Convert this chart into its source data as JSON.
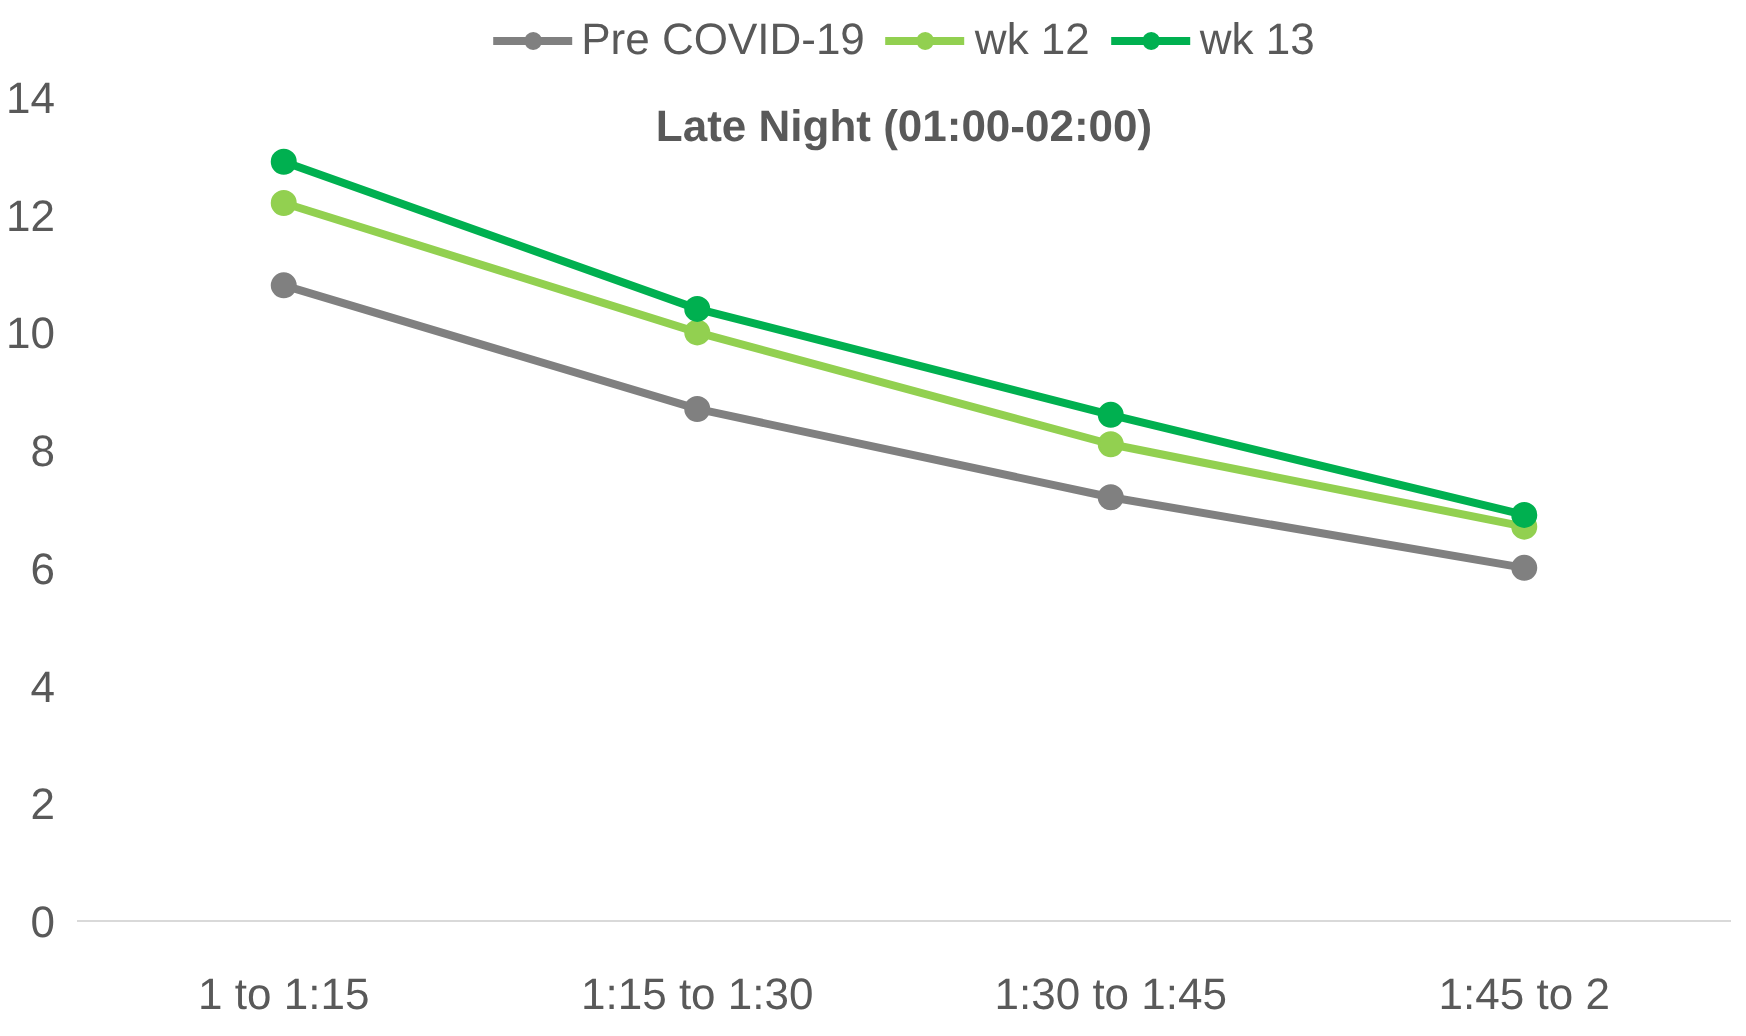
{
  "chart_data": {
    "type": "line",
    "title": "Late Night (01:00-02:00)",
    "categories": [
      "1 to 1:15",
      "1:15 to 1:30",
      "1:30 to 1:45",
      "1:45 to 2"
    ],
    "series": [
      {
        "name": "Pre COVID-19",
        "color": "#808080",
        "values": [
          10.8,
          8.7,
          7.2,
          6.0
        ]
      },
      {
        "name": "wk 12",
        "color": "#92d050",
        "values": [
          12.2,
          10.0,
          8.1,
          6.7
        ]
      },
      {
        "name": "wk 13",
        "color": "#00b050",
        "values": [
          12.9,
          10.4,
          8.6,
          6.9
        ]
      }
    ],
    "ylim": [
      0,
      14
    ],
    "yticks": [
      0,
      2,
      4,
      6,
      8,
      10,
      12,
      14
    ],
    "grid": false,
    "legend": "top",
    "marker": "circle",
    "line_style": "solid"
  }
}
